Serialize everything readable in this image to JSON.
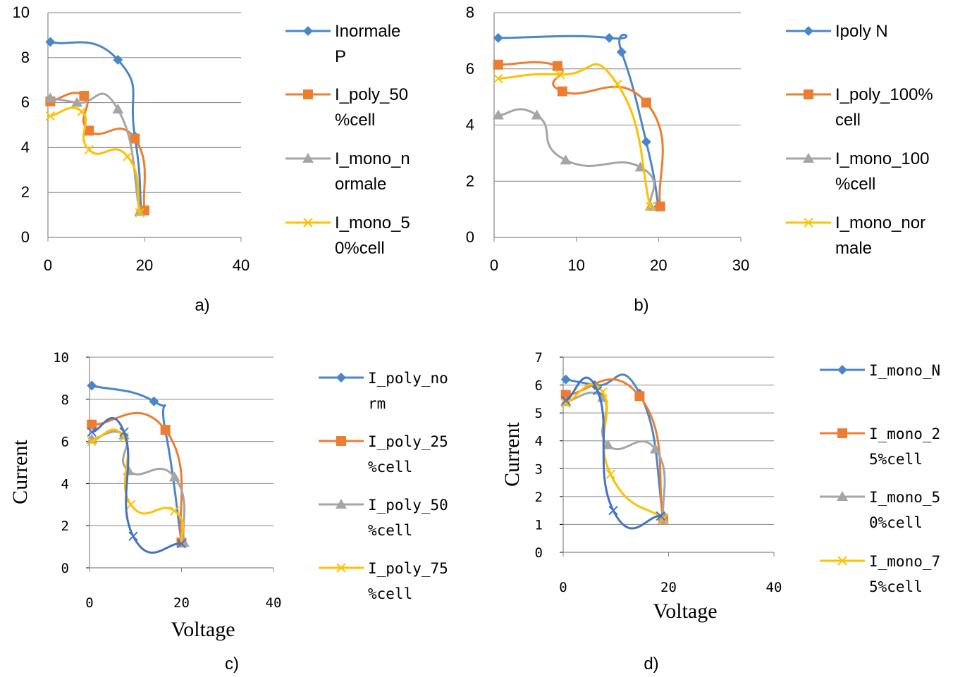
{
  "panel_labels": [
    "a)",
    "b)",
    "c)",
    "d)"
  ],
  "colors": {
    "blue": "#4A86C8",
    "orange": "#ED7D31",
    "gray": "#A5A5A5",
    "yellow": "#FFC000",
    "grid": "#868686"
  },
  "chart_data": [
    {
      "type": "line",
      "panel": "a)",
      "xlabel": "",
      "ylabel": "",
      "xlim": [
        0,
        40
      ],
      "ylim": [
        0,
        10
      ],
      "xticks": [
        "0",
        "20",
        "40"
      ],
      "yticks": [
        "0",
        "2",
        "4",
        "6",
        "8",
        "10"
      ],
      "series": [
        {
          "legend_lines": [
            "Inormale",
            "P"
          ],
          "color": "#4A86C8",
          "marker": "diamond",
          "points": [
            [
              0.5,
              8.7
            ],
            [
              14.5,
              7.9
            ],
            [
              18,
              4.5
            ],
            [
              19.3,
              1.2
            ]
          ]
        },
        {
          "legend_lines": [
            "I_poly_50",
            "%cell"
          ],
          "color": "#ED7D31",
          "marker": "square",
          "points": [
            [
              0.5,
              6.05
            ],
            [
              7.5,
              6.3
            ],
            [
              8.5,
              4.75
            ],
            [
              18,
              4.4
            ],
            [
              20,
              1.2
            ]
          ]
        },
        {
          "legend_lines": [
            "I_mono_n",
            "ormale"
          ],
          "color": "#A5A5A5",
          "marker": "triangle",
          "points": [
            [
              0.5,
              6.2
            ],
            [
              6,
              6.0
            ],
            [
              14.5,
              5.7
            ],
            [
              19,
              1.15
            ]
          ]
        },
        {
          "legend_lines": [
            "I_mono_5",
            "0%cell"
          ],
          "color": "#FFC000",
          "marker": "x",
          "points": [
            [
              0.5,
              5.4
            ],
            [
              7,
              5.6
            ],
            [
              8.5,
              3.9
            ],
            [
              16.5,
              3.6
            ],
            [
              19,
              1.1
            ]
          ]
        }
      ]
    },
    {
      "type": "line",
      "panel": "b)",
      "xlabel": "",
      "ylabel": "",
      "xlim": [
        0,
        30
      ],
      "ylim": [
        0,
        8
      ],
      "xticks": [
        "0",
        "10",
        "20",
        "30"
      ],
      "yticks": [
        "0",
        "2",
        "4",
        "6",
        "8"
      ],
      "series": [
        {
          "legend_lines": [
            "Ipoly N"
          ],
          "color": "#4A86C8",
          "marker": "diamond",
          "points": [
            [
              0.5,
              7.1
            ],
            [
              14,
              7.1
            ],
            [
              15.5,
              6.6
            ],
            [
              18.5,
              3.4
            ],
            [
              20,
              1.1
            ]
          ]
        },
        {
          "legend_lines": [
            "I_poly_100%",
            "cell"
          ],
          "color": "#ED7D31",
          "marker": "square",
          "points": [
            [
              0.5,
              6.15
            ],
            [
              7.7,
              6.1
            ],
            [
              8.3,
              5.2
            ],
            [
              18.5,
              4.8
            ],
            [
              20.2,
              1.1
            ]
          ]
        },
        {
          "legend_lines": [
            "I_mono_100",
            "%cell"
          ],
          "color": "#A5A5A5",
          "marker": "triangle",
          "points": [
            [
              0.5,
              4.35
            ],
            [
              5.2,
              4.35
            ],
            [
              8.7,
              2.75
            ],
            [
              17.8,
              2.5
            ],
            [
              19,
              1.1
            ]
          ]
        },
        {
          "legend_lines": [
            "I_mono_nor",
            "male"
          ],
          "color": "#FFC000",
          "marker": "x",
          "points": [
            [
              0.5,
              5.65
            ],
            [
              8,
              5.8
            ],
            [
              15,
              5.45
            ],
            [
              19,
              1.1
            ]
          ]
        }
      ]
    },
    {
      "type": "line",
      "panel": "c)",
      "xlabel": "Voltage",
      "ylabel": "Current",
      "xlim": [
        0,
        40
      ],
      "ylim": [
        0,
        10
      ],
      "xticks": [
        "0",
        "20",
        "40"
      ],
      "yticks": [
        "0",
        "2",
        "4",
        "6",
        "8",
        "10"
      ],
      "series": [
        {
          "legend_lines": [
            "I_poly_no",
            "rm"
          ],
          "color": "#4A86C8",
          "marker": "diamond",
          "points": [
            [
              0.5,
              8.65
            ],
            [
              14,
              7.9
            ],
            [
              16.5,
              6.5
            ],
            [
              20,
              1.2
            ]
          ]
        },
        {
          "legend_lines": [
            "I_poly_25",
            "%cell"
          ],
          "color": "#ED7D31",
          "marker": "square",
          "points": [
            [
              0.5,
              6.8
            ],
            [
              16.5,
              6.55
            ],
            [
              20,
              1.2
            ]
          ]
        },
        {
          "legend_lines": [
            "I_poly_50",
            "%cell"
          ],
          "color": "#A5A5A5",
          "marker": "triangle",
          "points": [
            [
              0.5,
              6.1
            ],
            [
              7.5,
              6.3
            ],
            [
              8.5,
              4.6
            ],
            [
              18.5,
              4.3
            ],
            [
              20.5,
              1.2
            ]
          ]
        },
        {
          "legend_lines": [
            "I_poly_75",
            "%cell"
          ],
          "color": "#FFC000",
          "marker": "x",
          "points": [
            [
              0.5,
              6.0
            ],
            [
              7.5,
              6.2
            ],
            [
              9,
              3.0
            ],
            [
              18.5,
              2.7
            ],
            [
              20,
              1.15
            ]
          ]
        },
        {
          "legend_lines": [],
          "color": "#4472C4",
          "marker": "x",
          "points": [
            [
              0.5,
              6.45
            ],
            [
              7.5,
              6.45
            ],
            [
              9.5,
              1.5
            ],
            [
              20,
              1.15
            ]
          ]
        }
      ]
    },
    {
      "type": "line",
      "panel": "d)",
      "xlabel": "Voltage",
      "ylabel": "Current",
      "xlim": [
        0,
        40
      ],
      "ylim": [
        0,
        7
      ],
      "xticks": [
        "0",
        "20",
        "40"
      ],
      "yticks": [
        "0",
        "1",
        "2",
        "3",
        "4",
        "5",
        "6",
        "7"
      ],
      "series": [
        {
          "legend_lines": [
            "I_mono_N"
          ],
          "color": "#4A86C8",
          "marker": "diamond",
          "points": [
            [
              0.5,
              6.2
            ],
            [
              6,
              6.0
            ],
            [
              14.5,
              5.7
            ],
            [
              19,
              1.3
            ]
          ]
        },
        {
          "legend_lines": [
            "I_mono_2",
            "5%cell"
          ],
          "color": "#ED7D31",
          "marker": "square",
          "points": [
            [
              0.5,
              5.65
            ],
            [
              14.5,
              5.6
            ],
            [
              19,
              1.2
            ]
          ]
        },
        {
          "legend_lines": [
            "I_mono_5",
            "0%cell"
          ],
          "color": "#A5A5A5",
          "marker": "triangle",
          "points": [
            [
              0.5,
              5.4
            ],
            [
              7.5,
              5.55
            ],
            [
              8.5,
              3.85
            ],
            [
              17.5,
              3.7
            ],
            [
              19,
              1.2
            ]
          ]
        },
        {
          "legend_lines": [
            "I_mono_7",
            "5%cell"
          ],
          "color": "#FFC000",
          "marker": "x",
          "points": [
            [
              0.5,
              5.35
            ],
            [
              7.5,
              5.75
            ],
            [
              9,
              2.8
            ],
            [
              19,
              1.2
            ]
          ]
        },
        {
          "legend_lines": [],
          "color": "#4472C4",
          "marker": "x",
          "points": [
            [
              0.5,
              5.45
            ],
            [
              6.5,
              5.8
            ],
            [
              9.5,
              1.5
            ],
            [
              18.5,
              1.3
            ]
          ]
        }
      ]
    }
  ]
}
